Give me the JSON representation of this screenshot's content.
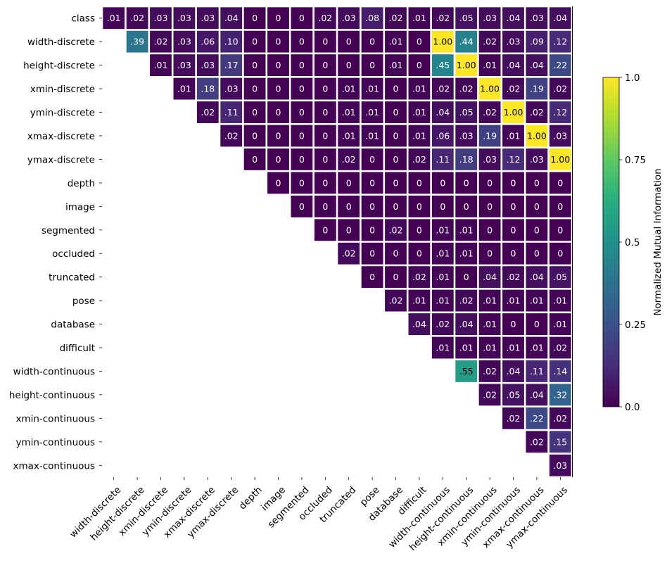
{
  "chart_data": {
    "type": "heatmap",
    "title": "",
    "xlabel": "",
    "ylabel": "",
    "row_labels": [
      "class",
      "width-discrete",
      "height-discrete",
      "xmin-discrete",
      "ymin-discrete",
      "xmax-discrete",
      "ymax-discrete",
      "depth",
      "image",
      "segmented",
      "occluded",
      "truncated",
      "pose",
      "database",
      "difficult",
      "width-continuous",
      "height-continuous",
      "xmin-continuous",
      "ymin-continuous",
      "xmax-continuous"
    ],
    "col_labels": [
      "width-discrete",
      "height-discrete",
      "xmin-discrete",
      "ymin-discrete",
      "xmax-discrete",
      "ymax-discrete",
      "depth",
      "image",
      "segmented",
      "occluded",
      "truncated",
      "pose",
      "database",
      "difficult",
      "width-continuous",
      "height-continuous",
      "xmin-continuous",
      "ymin-continuous",
      "xmax-continuous",
      "ymax-continuous"
    ],
    "values": [
      [
        0.01,
        0.02,
        0.03,
        0.03,
        0.03,
        0.04,
        0,
        0,
        0,
        0.02,
        0.03,
        0.08,
        0.02,
        0.01,
        0.02,
        0.05,
        0.03,
        0.04,
        0.03,
        0.04
      ],
      [
        null,
        0.39,
        0.02,
        0.03,
        0.06,
        0.1,
        0,
        0,
        0,
        0,
        0,
        0,
        0.01,
        0,
        1.0,
        0.44,
        0.02,
        0.03,
        0.09,
        0.12
      ],
      [
        null,
        null,
        0.01,
        0.03,
        0.03,
        0.17,
        0,
        0,
        0,
        0,
        0,
        0,
        0.01,
        0,
        0.45,
        1.0,
        0.01,
        0.04,
        0.04,
        0.22
      ],
      [
        null,
        null,
        null,
        0.01,
        0.18,
        0.03,
        0,
        0,
        0,
        0,
        0.01,
        0.01,
        0,
        0.01,
        0.02,
        0.02,
        1.0,
        0.02,
        0.19,
        0.02
      ],
      [
        null,
        null,
        null,
        null,
        0.02,
        0.11,
        0,
        0,
        0,
        0,
        0.01,
        0.01,
        0,
        0.01,
        0.04,
        0.05,
        0.02,
        1.0,
        0.02,
        0.12
      ],
      [
        null,
        null,
        null,
        null,
        null,
        0.02,
        0,
        0,
        0,
        0,
        0.01,
        0.01,
        0,
        0.01,
        0.06,
        0.03,
        0.19,
        0.01,
        1.0,
        0.03
      ],
      [
        null,
        null,
        null,
        null,
        null,
        null,
        0,
        0,
        0,
        0,
        0.02,
        0,
        0,
        0.02,
        0.11,
        0.18,
        0.03,
        0.12,
        0.03,
        1.0
      ],
      [
        null,
        null,
        null,
        null,
        null,
        null,
        null,
        0,
        0,
        0,
        0,
        0,
        0,
        0,
        0,
        0,
        0,
        0,
        0,
        0
      ],
      [
        null,
        null,
        null,
        null,
        null,
        null,
        null,
        null,
        0,
        0,
        0,
        0,
        0,
        0,
        0,
        0,
        0,
        0,
        0,
        0
      ],
      [
        null,
        null,
        null,
        null,
        null,
        null,
        null,
        null,
        null,
        0,
        0,
        0,
        0.02,
        0,
        0.01,
        0.01,
        0,
        0,
        0,
        0
      ],
      [
        null,
        null,
        null,
        null,
        null,
        null,
        null,
        null,
        null,
        null,
        0.02,
        0,
        0,
        0,
        0.01,
        0.01,
        0,
        0,
        0,
        0
      ],
      [
        null,
        null,
        null,
        null,
        null,
        null,
        null,
        null,
        null,
        null,
        null,
        0,
        0,
        0.02,
        0.01,
        0,
        0.04,
        0.02,
        0.04,
        0.05
      ],
      [
        null,
        null,
        null,
        null,
        null,
        null,
        null,
        null,
        null,
        null,
        null,
        null,
        0.02,
        0.01,
        0.01,
        0.02,
        0.01,
        0.01,
        0.01,
        0.01
      ],
      [
        null,
        null,
        null,
        null,
        null,
        null,
        null,
        null,
        null,
        null,
        null,
        null,
        null,
        0.04,
        0.02,
        0.04,
        0.01,
        0,
        0,
        0.01
      ],
      [
        null,
        null,
        null,
        null,
        null,
        null,
        null,
        null,
        null,
        null,
        null,
        null,
        null,
        null,
        0.01,
        0.01,
        0.01,
        0.01,
        0.01,
        0.02
      ],
      [
        null,
        null,
        null,
        null,
        null,
        null,
        null,
        null,
        null,
        null,
        null,
        null,
        null,
        null,
        null,
        0.55,
        0.02,
        0.04,
        0.11,
        0.14
      ],
      [
        null,
        null,
        null,
        null,
        null,
        null,
        null,
        null,
        null,
        null,
        null,
        null,
        null,
        null,
        null,
        null,
        0.02,
        0.05,
        0.04,
        0.32
      ],
      [
        null,
        null,
        null,
        null,
        null,
        null,
        null,
        null,
        null,
        null,
        null,
        null,
        null,
        null,
        null,
        null,
        null,
        0.02,
        0.22,
        0.02
      ],
      [
        null,
        null,
        null,
        null,
        null,
        null,
        null,
        null,
        null,
        null,
        null,
        null,
        null,
        null,
        null,
        null,
        null,
        null,
        0.02,
        0.15
      ],
      [
        null,
        null,
        null,
        null,
        null,
        null,
        null,
        null,
        null,
        null,
        null,
        null,
        null,
        null,
        null,
        null,
        null,
        null,
        null,
        0.03
      ]
    ],
    "cell_labels": [
      [
        ".01",
        ".02",
        ".03",
        ".03",
        ".03",
        ".04",
        "0",
        "0",
        "0",
        ".02",
        ".03",
        ".08",
        ".02",
        ".01",
        ".02",
        ".05",
        ".03",
        ".04",
        ".03",
        ".04"
      ],
      [
        null,
        ".39",
        ".02",
        ".03",
        ".06",
        ".10",
        "0",
        "0",
        "0",
        "0",
        "0",
        "0",
        ".01",
        "0",
        "1.00",
        ".44",
        ".02",
        ".03",
        ".09",
        ".12"
      ],
      [
        null,
        null,
        ".01",
        ".03",
        ".03",
        ".17",
        "0",
        "0",
        "0",
        "0",
        "0",
        "0",
        ".01",
        "0",
        ".45",
        "1.00",
        ".01",
        ".04",
        ".04",
        ".22"
      ],
      [
        null,
        null,
        null,
        ".01",
        ".18",
        ".03",
        "0",
        "0",
        "0",
        "0",
        ".01",
        ".01",
        "0",
        ".01",
        ".02",
        ".02",
        "1.00",
        ".02",
        ".19",
        ".02"
      ],
      [
        null,
        null,
        null,
        null,
        ".02",
        ".11",
        "0",
        "0",
        "0",
        "0",
        ".01",
        ".01",
        "0",
        ".01",
        ".04",
        ".05",
        ".02",
        "1.00",
        ".02",
        ".12"
      ],
      [
        null,
        null,
        null,
        null,
        null,
        ".02",
        "0",
        "0",
        "0",
        "0",
        ".01",
        ".01",
        "0",
        ".01",
        ".06",
        ".03",
        ".19",
        ".01",
        "1.00",
        ".03"
      ],
      [
        null,
        null,
        null,
        null,
        null,
        null,
        "0",
        "0",
        "0",
        "0",
        ".02",
        "0",
        "0",
        ".02",
        ".11",
        ".18",
        ".03",
        ".12",
        ".03",
        "1.00"
      ],
      [
        null,
        null,
        null,
        null,
        null,
        null,
        null,
        "0",
        "0",
        "0",
        "0",
        "0",
        "0",
        "0",
        "0",
        "0",
        "0",
        "0",
        "0",
        "0"
      ],
      [
        null,
        null,
        null,
        null,
        null,
        null,
        null,
        null,
        "0",
        "0",
        "0",
        "0",
        "0",
        "0",
        "0",
        "0",
        "0",
        "0",
        "0",
        "0"
      ],
      [
        null,
        null,
        null,
        null,
        null,
        null,
        null,
        null,
        null,
        "0",
        "0",
        "0",
        ".02",
        "0",
        ".01",
        ".01",
        "0",
        "0",
        "0",
        "0"
      ],
      [
        null,
        null,
        null,
        null,
        null,
        null,
        null,
        null,
        null,
        null,
        ".02",
        "0",
        "0",
        "0",
        ".01",
        ".01",
        "0",
        "0",
        "0",
        "0"
      ],
      [
        null,
        null,
        null,
        null,
        null,
        null,
        null,
        null,
        null,
        null,
        null,
        "0",
        "0",
        ".02",
        ".01",
        "0",
        ".04",
        ".02",
        ".04",
        ".05"
      ],
      [
        null,
        null,
        null,
        null,
        null,
        null,
        null,
        null,
        null,
        null,
        null,
        null,
        ".02",
        ".01",
        ".01",
        ".02",
        ".01",
        ".01",
        ".01",
        ".01"
      ],
      [
        null,
        null,
        null,
        null,
        null,
        null,
        null,
        null,
        null,
        null,
        null,
        null,
        null,
        ".04",
        ".02",
        ".04",
        ".01",
        "0",
        "0",
        ".01"
      ],
      [
        null,
        null,
        null,
        null,
        null,
        null,
        null,
        null,
        null,
        null,
        null,
        null,
        null,
        null,
        ".01",
        ".01",
        ".01",
        ".01",
        ".01",
        ".02"
      ],
      [
        null,
        null,
        null,
        null,
        null,
        null,
        null,
        null,
        null,
        null,
        null,
        null,
        null,
        null,
        null,
        ".55",
        ".02",
        ".04",
        ".11",
        ".14"
      ],
      [
        null,
        null,
        null,
        null,
        null,
        null,
        null,
        null,
        null,
        null,
        null,
        null,
        null,
        null,
        null,
        null,
        ".02",
        ".05",
        ".04",
        ".32"
      ],
      [
        null,
        null,
        null,
        null,
        null,
        null,
        null,
        null,
        null,
        null,
        null,
        null,
        null,
        null,
        null,
        null,
        null,
        ".02",
        ".22",
        ".02"
      ],
      [
        null,
        null,
        null,
        null,
        null,
        null,
        null,
        null,
        null,
        null,
        null,
        null,
        null,
        null,
        null,
        null,
        null,
        null,
        ".02",
        ".15"
      ],
      [
        null,
        null,
        null,
        null,
        null,
        null,
        null,
        null,
        null,
        null,
        null,
        null,
        null,
        null,
        null,
        null,
        null,
        null,
        null,
        ".03"
      ]
    ],
    "colorbar": {
      "label": "Normalized Mutual Information",
      "range": [
        0,
        1
      ],
      "ticks": [
        0,
        0.25,
        0.5,
        0.75,
        1.0
      ],
      "tick_labels": [
        "0.0",
        "0.25",
        "0.5",
        "0.75",
        "1.0"
      ],
      "colormap": "viridis"
    },
    "grid": false
  }
}
